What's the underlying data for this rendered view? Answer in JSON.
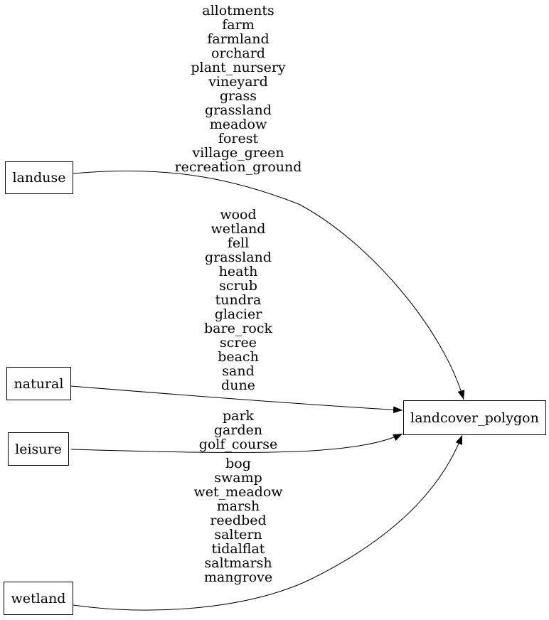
{
  "diagram": {
    "kind": "dependency-graph",
    "target": {
      "id": "landcover_polygon",
      "label": "landcover_polygon"
    },
    "sources": [
      {
        "id": "landuse",
        "label": "landuse",
        "values": [
          "allotments",
          "farm",
          "farmland",
          "orchard",
          "plant_nursery",
          "vineyard",
          "grass",
          "grassland",
          "meadow",
          "forest",
          "village_green",
          "recreation_ground"
        ]
      },
      {
        "id": "natural",
        "label": "natural",
        "values": [
          "wood",
          "wetland",
          "fell",
          "grassland",
          "heath",
          "scrub",
          "tundra",
          "glacier",
          "bare_rock",
          "scree",
          "beach",
          "sand",
          "dune"
        ]
      },
      {
        "id": "leisure",
        "label": "leisure",
        "values": [
          "park",
          "garden",
          "golf_course"
        ]
      },
      {
        "id": "wetland",
        "label": "wetland",
        "values": [
          "bog",
          "swamp",
          "wet_meadow",
          "marsh",
          "reedbed",
          "saltern",
          "tidalflat",
          "saltmarsh",
          "mangrove"
        ]
      }
    ],
    "edges": [
      {
        "from": "landuse",
        "to": "landcover_polygon"
      },
      {
        "from": "natural",
        "to": "landcover_polygon"
      },
      {
        "from": "leisure",
        "to": "landcover_polygon"
      },
      {
        "from": "wetland",
        "to": "landcover_polygon"
      }
    ],
    "colors": {
      "stroke": "#000000",
      "text": "#000000",
      "node_fill": "#ffffff",
      "background": "#ffffff"
    }
  }
}
